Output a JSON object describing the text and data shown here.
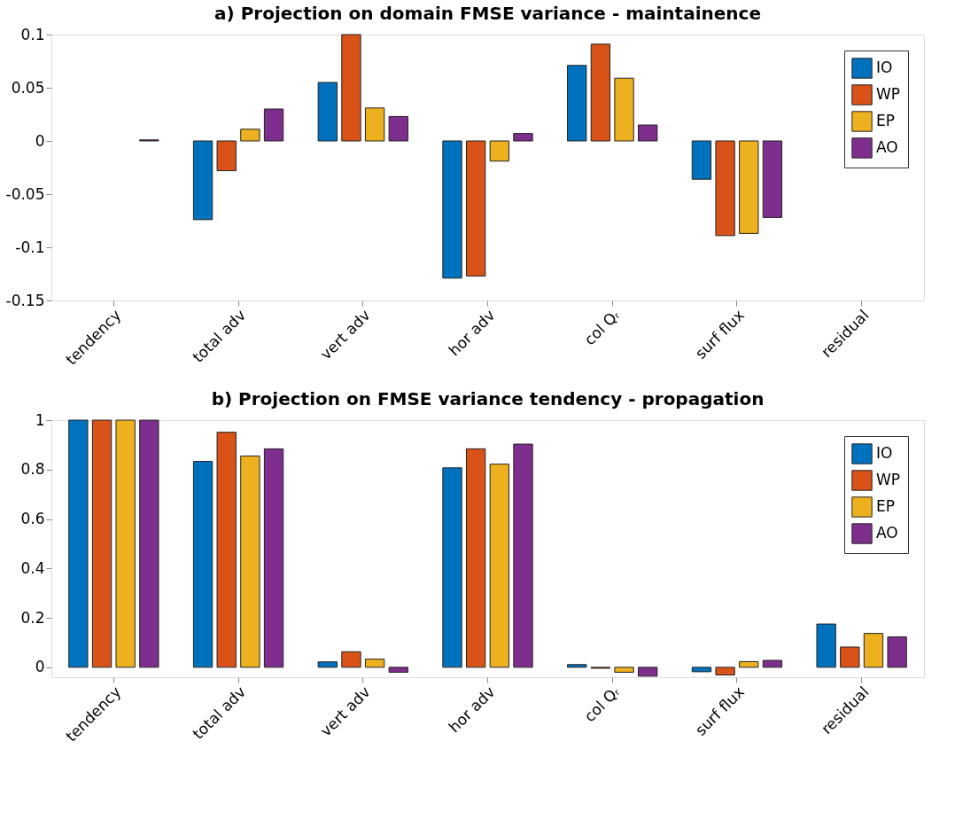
{
  "chart_data": [
    {
      "type": "bar",
      "title": "a) Projection on domain FMSE variance - maintainence",
      "categories": [
        "tendency",
        "total adv",
        "vert adv",
        "hor adv",
        "col Qᵣ",
        "surf flux",
        "residual"
      ],
      "ylim": [
        -0.15,
        0.1
      ],
      "yticks": [
        -0.15,
        -0.1,
        -0.05,
        0,
        0.05,
        0.1
      ],
      "legend": "top right",
      "grid": false,
      "series": [
        {
          "name": "IO",
          "color": "#0072bd",
          "values": [
            0,
            -0.074,
            0.055,
            -0.129,
            0.071,
            -0.036,
            0
          ]
        },
        {
          "name": "WP",
          "color": "#d95319",
          "values": [
            0,
            -0.028,
            0.1,
            -0.127,
            0.091,
            -0.089,
            0
          ]
        },
        {
          "name": "EP",
          "color": "#edb120",
          "values": [
            0,
            0.011,
            0.031,
            -0.019,
            0.059,
            -0.087,
            0
          ]
        },
        {
          "name": "AO",
          "color": "#7e2f8e",
          "values": [
            0.001,
            0.03,
            0.023,
            0.007,
            0.015,
            -0.072,
            0
          ]
        }
      ]
    },
    {
      "type": "bar",
      "title": "b) Projection on FMSE variance tendency - propagation",
      "categories": [
        "tendency",
        "total adv",
        "vert adv",
        "hor adv",
        "col Qᵣ",
        "surf flux",
        "residual"
      ],
      "ylim": [
        -0.04,
        1
      ],
      "yticks": [
        0,
        0.2,
        0.4,
        0.6,
        0.8,
        1
      ],
      "legend": "top right",
      "grid": false,
      "series": [
        {
          "name": "IO",
          "color": "#0072bd",
          "values": [
            1,
            0.833,
            0.022,
            0.807,
            0.011,
            -0.018,
            0.175
          ]
        },
        {
          "name": "WP",
          "color": "#d95319",
          "values": [
            1,
            0.951,
            0.063,
            0.884,
            -0.004,
            -0.031,
            0.082
          ]
        },
        {
          "name": "EP",
          "color": "#edb120",
          "values": [
            1,
            0.855,
            0.033,
            0.822,
            -0.02,
            0.023,
            0.137
          ]
        },
        {
          "name": "AO",
          "color": "#7e2f8e",
          "values": [
            1,
            0.884,
            -0.02,
            0.903,
            -0.036,
            0.028,
            0.123
          ]
        }
      ]
    }
  ]
}
